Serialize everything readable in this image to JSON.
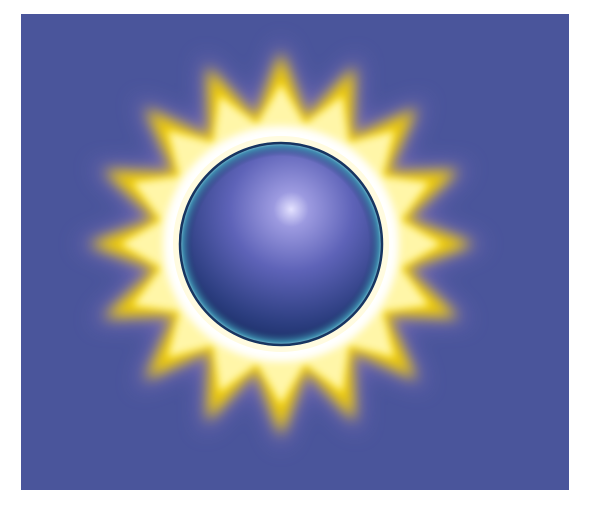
{
  "image": {
    "subject": "eclipse-sun-icon",
    "colors": {
      "background": "#4a559b",
      "page": "#ffffff",
      "rays_outer": "#f5d100",
      "rays_inner": "#fff6a8",
      "corona_white": "#ffffff",
      "sphere_light": "#c9c8f2",
      "sphere_mid": "#5e63b8",
      "sphere_dark": "#14285c",
      "sphere_rim": "#3e8fb0"
    },
    "ray_count": 16
  }
}
